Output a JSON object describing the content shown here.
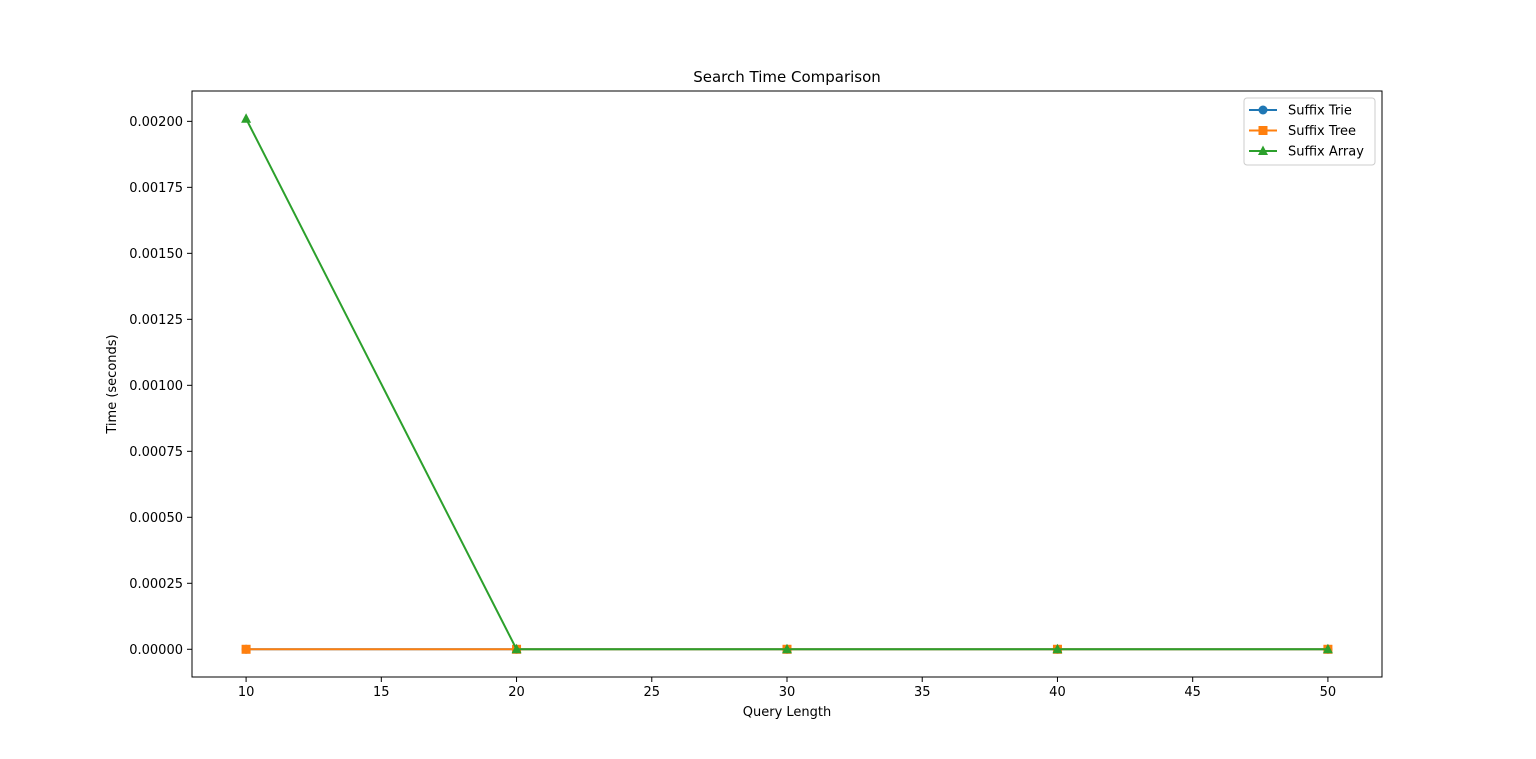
{
  "chart_data": {
    "type": "line",
    "title": "Search Time Comparison",
    "xlabel": "Query Length",
    "ylabel": "Time (seconds)",
    "x": [
      10,
      20,
      30,
      40,
      50
    ],
    "xlim": [
      8,
      52
    ],
    "ylim": [
      -0.000105,
      0.002115
    ],
    "xticks": [
      10,
      15,
      20,
      25,
      30,
      35,
      40,
      45,
      50
    ],
    "yticks": [
      0.0,
      0.00025,
      0.0005,
      0.00075,
      0.001,
      0.00125,
      0.0015,
      0.00175,
      0.002
    ],
    "ytick_labels": [
      "0.00000",
      "0.00025",
      "0.00050",
      "0.00075",
      "0.00100",
      "0.00125",
      "0.00150",
      "0.00175",
      "0.00200"
    ],
    "grid": false,
    "legend_position": "top-right",
    "series": [
      {
        "name": "Suffix Trie",
        "color": "#1f77b4",
        "marker": "circle",
        "values": [
          0.0,
          0.0,
          0.0,
          0.0,
          0.0
        ]
      },
      {
        "name": "Suffix Tree",
        "color": "#ff7f0e",
        "marker": "square",
        "values": [
          0.0,
          0.0,
          0.0,
          0.0,
          0.0
        ]
      },
      {
        "name": "Suffix Array",
        "color": "#2ca02c",
        "marker": "triangle",
        "values": [
          0.00201,
          0.0,
          0.0,
          0.0,
          0.0
        ]
      }
    ]
  }
}
